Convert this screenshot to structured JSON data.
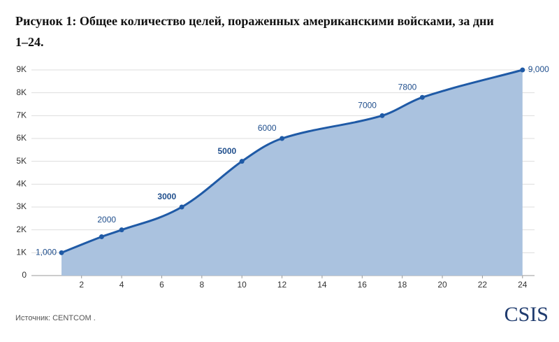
{
  "chart_data": {
    "type": "area",
    "title": "Рисунок 1: Общее количество целей, пораженных американскими войсками, за дни",
    "title_line2": "1–24.",
    "source": "Источник: CENTCOM .",
    "logo": "CSIS",
    "x": [
      1,
      3,
      4,
      7,
      10,
      12,
      17,
      19,
      24
    ],
    "values": [
      1000,
      1700,
      2000,
      3000,
      5000,
      6000,
      7000,
      7800,
      9000
    ],
    "value_labels": [
      "1,000",
      null,
      "2000",
      "3000",
      "5000",
      "6000",
      "7000",
      "7800",
      "9,000"
    ],
    "color": "#1f5aa6",
    "fill_color": "#aac2df",
    "xlim": [
      -0.5,
      24.6
    ],
    "xticks": [
      2,
      4,
      6,
      8,
      10,
      12,
      14,
      16,
      18,
      20,
      22,
      24
    ],
    "ylim": [
      0,
      9000
    ],
    "yticks": [
      0,
      {
        "value": 1000,
        "label": "1K"
      },
      {
        "value": 2000,
        "label": "2K"
      },
      {
        "value": 3000,
        "label": "3K"
      },
      {
        "value": 4000,
        "label": "4K"
      },
      {
        "value": 5000,
        "label": "5K"
      },
      {
        "value": 6000,
        "label": "6K"
      },
      {
        "value": 7000,
        "label": "7K"
      },
      {
        "value": 8000,
        "label": "8K"
      },
      {
        "value": 9000,
        "label": "9K"
      }
    ],
    "grid": true
  }
}
